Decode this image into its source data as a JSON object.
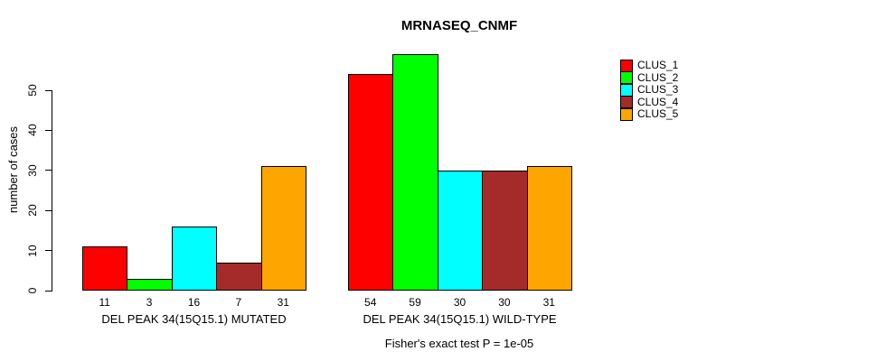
{
  "chart_data": {
    "type": "bar",
    "title": "MRNASEQ_CNMF",
    "ylabel": "number of cases",
    "xlabel": "",
    "ylim": [
      0,
      59
    ],
    "yticks": [
      0,
      10,
      20,
      30,
      40,
      50
    ],
    "grid": false,
    "legend_position": "right",
    "series": [
      {
        "name": "CLUS_1",
        "color": "#FF0000"
      },
      {
        "name": "CLUS_2",
        "color": "#00FF00"
      },
      {
        "name": "CLUS_3",
        "color": "#00FFFF"
      },
      {
        "name": "CLUS_4",
        "color": "#A52A2A"
      },
      {
        "name": "CLUS_5",
        "color": "#FFA500"
      }
    ],
    "groups": [
      {
        "label": "DEL PEAK 34(15Q15.1) MUTATED",
        "values": [
          11,
          3,
          16,
          7,
          31
        ]
      },
      {
        "label": "DEL PEAK 34(15Q15.1) WILD-TYPE",
        "values": [
          54,
          59,
          30,
          30,
          31
        ]
      }
    ],
    "note": "Fisher's exact test P = 1e-05"
  }
}
